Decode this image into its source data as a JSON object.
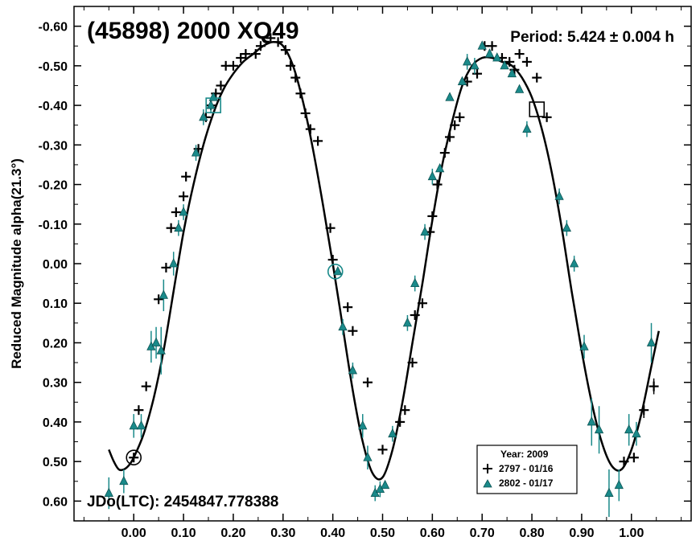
{
  "chart_data": {
    "type": "scatter",
    "title": "(45898) 2000 XQ49",
    "period_text": "Period: 5.424 ± 0.004 h",
    "ylabel": "Reduced Magnitude alpha(21.3°)",
    "xlabel": "",
    "epoch_text": "JDo(LTC): 2454847.778388",
    "xlim": [
      -0.12,
      1.12
    ],
    "ylim": [
      -0.65,
      0.65
    ],
    "y_inverted": true,
    "x_ticks": [
      0.0,
      0.1,
      0.2,
      0.3,
      0.4,
      0.5,
      0.6,
      0.7,
      0.8,
      0.9,
      1.0
    ],
    "x_tick_labels": [
      "0.00",
      "0.10",
      "0.20",
      "0.30",
      "0.40",
      "0.50",
      "0.60",
      "0.70",
      "0.80",
      "0.90",
      "1.00"
    ],
    "y_ticks": [
      -0.6,
      -0.5,
      -0.4,
      -0.3,
      -0.2,
      -0.1,
      0.0,
      0.1,
      0.2,
      0.3,
      0.4,
      0.5,
      0.6
    ],
    "y_tick_labels": [
      "-0.60",
      "-0.50",
      "-0.40",
      "-0.30",
      "-0.20",
      "-0.10",
      "0.00",
      "0.10",
      "0.20",
      "0.30",
      "0.40",
      "0.50",
      "0.60"
    ],
    "legend": {
      "title": "Year: 2009",
      "position": "bottom-right",
      "entries": [
        {
          "label": "2797 - 01/16",
          "marker": "plus",
          "color": "#000000"
        },
        {
          "label": "2802 - 01/17",
          "marker": "triangle",
          "color": "#1a8a8a"
        }
      ]
    },
    "colors": {
      "series_2797": "#000000",
      "series_2802": "#1a8a8a",
      "curve": "#000000"
    },
    "fit_curve": {
      "x": [
        -0.05,
        -0.04,
        -0.03,
        -0.02,
        -0.01,
        0.0,
        0.02,
        0.04,
        0.06,
        0.08,
        0.1,
        0.12,
        0.14,
        0.16,
        0.18,
        0.2,
        0.22,
        0.24,
        0.26,
        0.28,
        0.3,
        0.32,
        0.34,
        0.36,
        0.38,
        0.4,
        0.42,
        0.44,
        0.46,
        0.48,
        0.5,
        0.52,
        0.54,
        0.56,
        0.58,
        0.6,
        0.62,
        0.64,
        0.66,
        0.68,
        0.7,
        0.72,
        0.74,
        0.76,
        0.78,
        0.8,
        0.82,
        0.84,
        0.86,
        0.88,
        0.9,
        0.92,
        0.94,
        0.96,
        0.98,
        1.0,
        1.02,
        1.04,
        1.055
      ],
      "y": [
        0.47,
        0.5,
        0.52,
        0.52,
        0.51,
        0.49,
        0.43,
        0.34,
        0.22,
        0.07,
        -0.08,
        -0.2,
        -0.3,
        -0.38,
        -0.44,
        -0.48,
        -0.51,
        -0.53,
        -0.55,
        -0.56,
        -0.55,
        -0.5,
        -0.41,
        -0.29,
        -0.15,
        0.0,
        0.16,
        0.32,
        0.45,
        0.53,
        0.54,
        0.47,
        0.35,
        0.2,
        0.05,
        -0.11,
        -0.25,
        -0.36,
        -0.45,
        -0.5,
        -0.52,
        -0.52,
        -0.51,
        -0.5,
        -0.47,
        -0.42,
        -0.34,
        -0.23,
        -0.09,
        0.07,
        0.22,
        0.35,
        0.45,
        0.51,
        0.52,
        0.47,
        0.38,
        0.26,
        0.17
      ]
    },
    "series": [
      {
        "name": "2797 - 01/16",
        "marker": "plus",
        "x": [
          0.0,
          0.01,
          0.025,
          0.05,
          0.065,
          0.075,
          0.085,
          0.1,
          0.105,
          0.13,
          0.145,
          0.155,
          0.165,
          0.175,
          0.185,
          0.2,
          0.215,
          0.225,
          0.245,
          0.255,
          0.275,
          0.29,
          0.305,
          0.315,
          0.325,
          0.335,
          0.345,
          0.355,
          0.37,
          0.395,
          0.4,
          0.43,
          0.44,
          0.47,
          0.5,
          0.535,
          0.545,
          0.56,
          0.565,
          0.58,
          0.595,
          0.6,
          0.61,
          0.625,
          0.635,
          0.645,
          0.655,
          0.67,
          0.69,
          0.705,
          0.72,
          0.74,
          0.755,
          0.765,
          0.775,
          0.79,
          0.81,
          0.83,
          0.985,
          1.005,
          1.025,
          1.045
        ],
        "y": [
          0.49,
          0.37,
          0.31,
          0.09,
          0.01,
          -0.09,
          -0.13,
          -0.17,
          -0.22,
          -0.29,
          -0.37,
          -0.4,
          -0.43,
          -0.45,
          -0.5,
          -0.5,
          -0.52,
          -0.53,
          -0.53,
          -0.55,
          -0.57,
          -0.56,
          -0.54,
          -0.5,
          -0.47,
          -0.43,
          -0.38,
          -0.34,
          -0.31,
          -0.09,
          -0.01,
          0.11,
          0.17,
          0.3,
          0.47,
          0.4,
          0.37,
          0.25,
          0.13,
          0.1,
          -0.08,
          -0.12,
          -0.2,
          -0.28,
          -0.32,
          -0.35,
          -0.37,
          -0.46,
          -0.48,
          -0.55,
          -0.55,
          -0.52,
          -0.51,
          -0.49,
          -0.53,
          -0.51,
          -0.47,
          -0.37,
          0.5,
          0.49,
          0.37,
          0.31
        ],
        "y_err": [
          0.01,
          0.01,
          0.01,
          0.01,
          0.01,
          0.01,
          0.01,
          0.01,
          0.01,
          0.01,
          0.01,
          0.01,
          0.01,
          0.01,
          0.01,
          0.01,
          0.01,
          0.01,
          0.01,
          0.01,
          0.01,
          0.01,
          0.01,
          0.01,
          0.01,
          0.01,
          0.01,
          0.01,
          0.01,
          0.01,
          0.01,
          0.01,
          0.01,
          0.01,
          0.01,
          0.01,
          0.01,
          0.01,
          0.01,
          0.01,
          0.01,
          0.01,
          0.01,
          0.01,
          0.01,
          0.01,
          0.01,
          0.01,
          0.01,
          0.01,
          0.01,
          0.01,
          0.01,
          0.01,
          0.01,
          0.01,
          0.01,
          0.01,
          0.01,
          0.01,
          0.02,
          0.02
        ]
      },
      {
        "name": "2802 - 01/17",
        "marker": "triangle",
        "x": [
          -0.05,
          -0.02,
          0.0,
          0.015,
          0.035,
          0.045,
          0.055,
          0.06,
          0.08,
          0.09,
          0.1,
          0.125,
          0.14,
          0.155,
          0.16,
          0.41,
          0.42,
          0.44,
          0.46,
          0.47,
          0.485,
          0.495,
          0.505,
          0.52,
          0.55,
          0.565,
          0.585,
          0.6,
          0.615,
          0.635,
          0.66,
          0.67,
          0.685,
          0.7,
          0.715,
          0.73,
          0.745,
          0.76,
          0.775,
          0.79,
          0.855,
          0.87,
          0.885,
          0.905,
          0.92,
          0.935,
          0.955,
          0.975,
          0.995,
          1.01,
          1.04
        ],
        "y": [
          0.58,
          0.55,
          0.41,
          0.41,
          0.21,
          0.2,
          0.22,
          0.08,
          0.0,
          -0.09,
          -0.13,
          -0.28,
          -0.37,
          -0.4,
          -0.42,
          0.02,
          0.16,
          0.27,
          0.41,
          0.49,
          0.58,
          0.57,
          0.56,
          0.43,
          0.15,
          0.05,
          -0.08,
          -0.22,
          -0.24,
          -0.42,
          -0.46,
          -0.51,
          -0.5,
          -0.55,
          -0.53,
          -0.52,
          -0.5,
          -0.48,
          -0.44,
          -0.34,
          -0.17,
          -0.09,
          0.0,
          0.21,
          0.4,
          0.42,
          0.58,
          0.56,
          0.42,
          0.43,
          0.2
        ],
        "y_err": [
          0.04,
          0.03,
          0.03,
          0.03,
          0.04,
          0.04,
          0.06,
          0.04,
          0.03,
          0.02,
          0.02,
          0.02,
          0.02,
          0.02,
          0.01,
          0.01,
          0.02,
          0.02,
          0.03,
          0.03,
          0.02,
          0.02,
          0.01,
          0.02,
          0.02,
          0.02,
          0.02,
          0.02,
          0.01,
          0.01,
          0.01,
          0.02,
          0.02,
          0.01,
          0.01,
          0.01,
          0.01,
          0.01,
          0.01,
          0.02,
          0.02,
          0.02,
          0.02,
          0.03,
          0.06,
          0.06,
          0.06,
          0.04,
          0.04,
          0.03,
          0.05
        ]
      }
    ],
    "annotations": [
      {
        "shape": "circle",
        "x": 0.0,
        "y": 0.49,
        "color": "#000000"
      },
      {
        "shape": "circle",
        "x": 0.405,
        "y": 0.02,
        "color": "#1a8a8a"
      },
      {
        "shape": "square",
        "x": 0.16,
        "y": -0.4,
        "color": "#1a8a8a"
      },
      {
        "shape": "square",
        "x": 0.81,
        "y": -0.39,
        "color": "#000000"
      }
    ]
  }
}
